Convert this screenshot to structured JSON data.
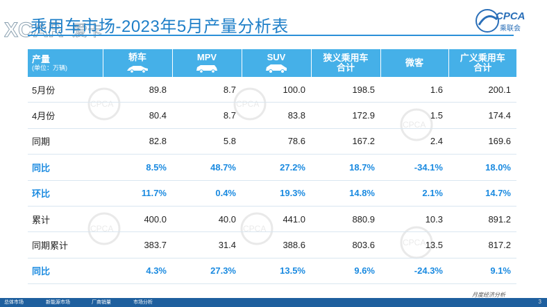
{
  "title": "乘用车市场-2023年5月产量分析表",
  "brand_left": "XCAR爱卡",
  "brand_right": "CPCA",
  "brand_right_sub": "乘联会",
  "table": {
    "headers": [
      {
        "label": "产量",
        "sub": "(单位：万辆)"
      },
      {
        "label": "轿车",
        "icon": "sedan-icon"
      },
      {
        "label": "MPV",
        "icon": "mpv-icon"
      },
      {
        "label": "SUV",
        "icon": "suv-icon"
      },
      {
        "label": "狭义乘用车",
        "label2": "合计"
      },
      {
        "label": "微客"
      },
      {
        "label": "广义乘用车",
        "label2": "合计"
      }
    ],
    "rows": [
      {
        "name": "5月份",
        "type": "value",
        "cells": [
          "89.8",
          "8.7",
          "100.0",
          "198.5",
          "1.6",
          "200.1"
        ]
      },
      {
        "name": "4月份",
        "type": "value",
        "cells": [
          "80.4",
          "8.7",
          "83.8",
          "172.9",
          "1.5",
          "174.4"
        ]
      },
      {
        "name": "同期",
        "type": "value",
        "cells": [
          "82.8",
          "5.8",
          "78.6",
          "167.2",
          "2.4",
          "169.6"
        ]
      },
      {
        "name": "同比",
        "type": "pct",
        "cells": [
          "8.5%",
          "48.7%",
          "27.2%",
          "18.7%",
          "-34.1%",
          "18.0%"
        ]
      },
      {
        "name": "环比",
        "type": "pct",
        "cells": [
          "11.7%",
          "0.4%",
          "19.3%",
          "14.8%",
          "2.1%",
          "14.7%"
        ]
      },
      {
        "name": "累计",
        "type": "value",
        "cells": [
          "400.0",
          "40.0",
          "441.0",
          "880.9",
          "10.3",
          "891.2"
        ]
      },
      {
        "name": "同期累计",
        "type": "value",
        "cells": [
          "383.7",
          "31.4",
          "388.6",
          "803.6",
          "13.5",
          "817.2"
        ]
      },
      {
        "name": "同比",
        "type": "pct",
        "cells": [
          "4.3%",
          "27.3%",
          "13.5%",
          "9.6%",
          "-24.3%",
          "9.1%"
        ]
      }
    ]
  },
  "footer": {
    "tabs": [
      "总体市场",
      "新能源市场",
      "厂商销量",
      "市场分析"
    ],
    "right_text": "月度经济分析",
    "page": "3"
  },
  "colors": {
    "header_bg": "#45b0e8",
    "pct_text": "#1a8ae0",
    "title": "#1e7fc8",
    "footer_bg": "#1e5f9e"
  }
}
